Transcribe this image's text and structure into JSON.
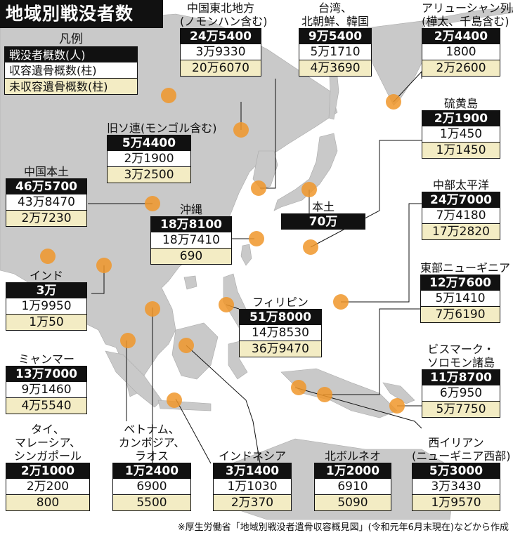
{
  "title": "地域別戦没者数",
  "legend": {
    "heading": "凡例",
    "items": [
      "戦没者概数(人)",
      "収容遺骨概数(柱)",
      "未収容遺骨概数(柱)"
    ]
  },
  "regions": [
    {
      "label": [
        "中国東北地方",
        "(ノモンハン含む)"
      ],
      "values": [
        "24万5400",
        "3万9330",
        "20万6070"
      ]
    },
    {
      "label": [
        "台湾、",
        "北朝鮮、韓国"
      ],
      "values": [
        "9万5400",
        "5万1710",
        "4万3690"
      ]
    },
    {
      "label": [
        "アリューシャン列島",
        "(樺太、千島含む)"
      ],
      "values": [
        "2万4400",
        "1800",
        "2万2600"
      ]
    },
    {
      "label": [
        "旧ソ連(モンゴル含む)"
      ],
      "values": [
        "5万4400",
        "2万1900",
        "3万2500"
      ]
    },
    {
      "label": [
        "硫黄島"
      ],
      "values": [
        "2万1900",
        "1万450",
        "1万1450"
      ]
    },
    {
      "label": [
        "中国本土"
      ],
      "values": [
        "46万5700",
        "43万8470",
        "2万7230"
      ]
    },
    {
      "label": [
        "沖縄"
      ],
      "values": [
        "18万8100",
        "18万7410",
        "690"
      ]
    },
    {
      "label": [
        "本土"
      ],
      "values": [
        "70万"
      ]
    },
    {
      "label": [
        "中部太平洋"
      ],
      "values": [
        "24万7000",
        "7万4180",
        "17万2820"
      ]
    },
    {
      "label": [
        "インド"
      ],
      "values": [
        "3万",
        "1万9950",
        "1万50"
      ]
    },
    {
      "label": [
        "フィリピン"
      ],
      "values": [
        "51万8000",
        "14万8530",
        "36万9470"
      ]
    },
    {
      "label": [
        "東部ニューギニア"
      ],
      "values": [
        "12万7600",
        "5万1410",
        "7万6190"
      ]
    },
    {
      "label": [
        "ミャンマー"
      ],
      "values": [
        "13万7000",
        "9万1460",
        "4万5540"
      ]
    },
    {
      "label": [
        "ビスマーク・",
        "ソロモン諸島"
      ],
      "values": [
        "11万8700",
        "6万950",
        "5万7750"
      ]
    },
    {
      "label": [
        "タイ、",
        "マレーシア、",
        "シンガポール"
      ],
      "values": [
        "2万1000",
        "2万200",
        "800"
      ]
    },
    {
      "label": [
        "ベトナム、",
        "カンボジア、",
        "ラオス"
      ],
      "values": [
        "1万2400",
        "6900",
        "5500"
      ]
    },
    {
      "label": [
        "インドネシア"
      ],
      "values": [
        "3万1400",
        "1万1030",
        "2万370"
      ]
    },
    {
      "label": [
        "北ボルネオ"
      ],
      "values": [
        "1万2000",
        "6910",
        "5090"
      ]
    },
    {
      "label": [
        "西イリアン",
        "(ニューギニア西部)"
      ],
      "values": [
        "5万3000",
        "3万3430",
        "1万9570"
      ]
    }
  ],
  "source_note": "※厚生労働省「地域別戦没者遺骨収容概見図」(令和元年6月末現在)などから作成",
  "colors": {
    "land": "#c9c9c9",
    "sea": "#ffffff",
    "marker": "#f0962a",
    "value_bg": "#f3ecc4",
    "header_bg": "#111111"
  }
}
